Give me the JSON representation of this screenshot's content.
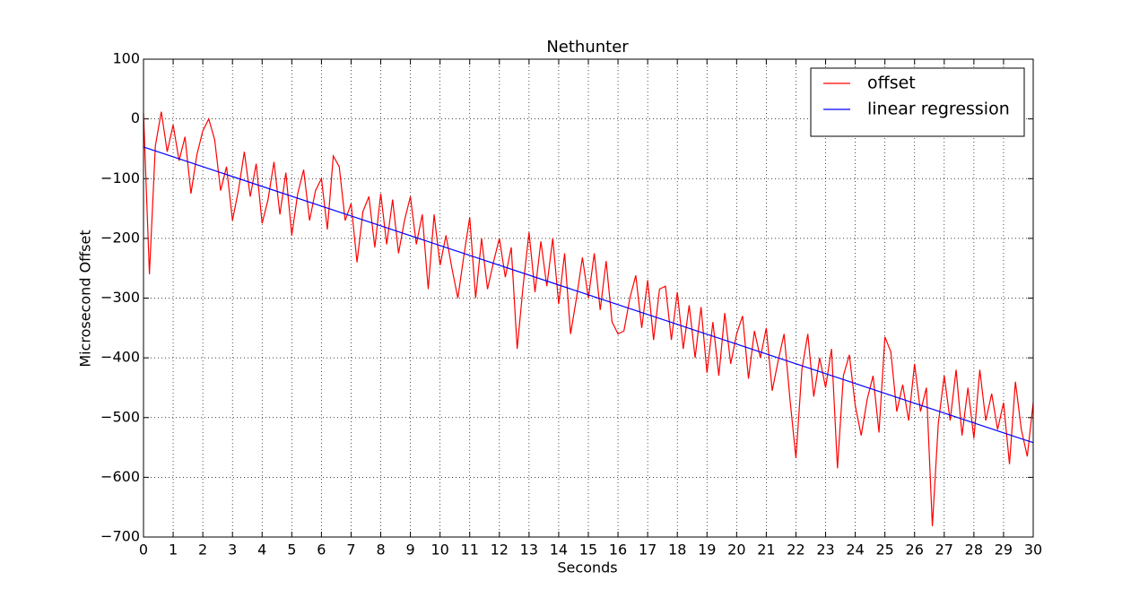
{
  "chart_data": {
    "type": "line",
    "title": "Nethunter",
    "xlabel": "Seconds",
    "ylabel": "Microsecond Offset",
    "xlim": [
      0,
      30
    ],
    "ylim": [
      -700,
      100
    ],
    "xticks": [
      0,
      1,
      2,
      3,
      4,
      5,
      6,
      7,
      8,
      9,
      10,
      11,
      12,
      13,
      14,
      15,
      16,
      17,
      18,
      19,
      20,
      21,
      22,
      23,
      24,
      25,
      26,
      27,
      28,
      29,
      30
    ],
    "yticks": [
      {
        "value": -700,
        "label": "−700"
      },
      {
        "value": -600,
        "label": "−600"
      },
      {
        "value": -500,
        "label": "−500"
      },
      {
        "value": -400,
        "label": "−400"
      },
      {
        "value": -300,
        "label": "−300"
      },
      {
        "value": -200,
        "label": "−200"
      },
      {
        "value": -100,
        "label": "−100"
      },
      0,
      100
    ],
    "grid": true,
    "legend": "upper right",
    "series": [
      {
        "name": "offset",
        "color": "#ff0000",
        "x": [
          0,
          0.2,
          0.4,
          0.6,
          0.8,
          1,
          1.2,
          1.4,
          1.6,
          1.8,
          2,
          2.2,
          2.4,
          2.6,
          2.8,
          3,
          3.2,
          3.4,
          3.6,
          3.8,
          4,
          4.2,
          4.4,
          4.6,
          4.8,
          5,
          5.2,
          5.4,
          5.6,
          5.8,
          6,
          6.2,
          6.4,
          6.6,
          6.8,
          7,
          7.2,
          7.4,
          7.6,
          7.8,
          8,
          8.2,
          8.4,
          8.6,
          8.8,
          9,
          9.2,
          9.4,
          9.6,
          9.8,
          10,
          10.2,
          10.4,
          10.6,
          10.8,
          11,
          11.2,
          11.4,
          11.6,
          11.8,
          12,
          12.2,
          12.4,
          12.6,
          12.8,
          13,
          13.2,
          13.4,
          13.6,
          13.8,
          14,
          14.2,
          14.4,
          14.6,
          14.8,
          15,
          15.2,
          15.4,
          15.6,
          15.8,
          16,
          16.2,
          16.4,
          16.6,
          16.8,
          17,
          17.2,
          17.4,
          17.6,
          17.8,
          18,
          18.2,
          18.4,
          18.6,
          18.8,
          19,
          19.2,
          19.4,
          19.6,
          19.8,
          20,
          20.2,
          20.4,
          20.6,
          20.8,
          21,
          21.2,
          21.4,
          21.6,
          21.8,
          22,
          22.2,
          22.4,
          22.6,
          22.8,
          23,
          23.2,
          23.4,
          23.6,
          23.8,
          24,
          24.2,
          24.4,
          24.6,
          24.8,
          25,
          25.2,
          25.4,
          25.6,
          25.8,
          26,
          26.2,
          26.4,
          26.6,
          26.8,
          27,
          27.2,
          27.4,
          27.6,
          27.8,
          28,
          28.2,
          28.4,
          28.6,
          28.8,
          29,
          29.2,
          29.4,
          29.6,
          29.8,
          30
        ],
        "values": [
          10,
          -260,
          -45,
          12,
          -55,
          -10,
          -70,
          -30,
          -125,
          -60,
          -20,
          0,
          -35,
          -120,
          -80,
          -170,
          -120,
          -55,
          -130,
          -75,
          -175,
          -135,
          -72,
          -160,
          -90,
          -195,
          -125,
          -85,
          -170,
          -120,
          -100,
          -185,
          -62,
          -80,
          -170,
          -142,
          -240,
          -155,
          -130,
          -215,
          -125,
          -210,
          -135,
          -225,
          -170,
          -130,
          -210,
          -160,
          -285,
          -160,
          -245,
          -195,
          -250,
          -300,
          -230,
          -165,
          -300,
          -200,
          -285,
          -240,
          -200,
          -265,
          -215,
          -385,
          -280,
          -190,
          -290,
          -205,
          -280,
          -200,
          -310,
          -225,
          -360,
          -300,
          -232,
          -300,
          -225,
          -320,
          -238,
          -340,
          -360,
          -355,
          -300,
          -262,
          -350,
          -270,
          -370,
          -285,
          -280,
          -370,
          -290,
          -385,
          -312,
          -400,
          -315,
          -425,
          -340,
          -430,
          -325,
          -410,
          -360,
          -330,
          -435,
          -355,
          -400,
          -350,
          -455,
          -405,
          -360,
          -470,
          -568,
          -420,
          -360,
          -465,
          -400,
          -450,
          -385,
          -585,
          -430,
          -395,
          -480,
          -530,
          -470,
          -430,
          -525,
          -365,
          -390,
          -490,
          -445,
          -505,
          -410,
          -490,
          -450,
          -682,
          -510,
          -430,
          -505,
          -420,
          -530,
          -450,
          -535,
          -420,
          -505,
          -460,
          -520,
          -475,
          -578,
          -440,
          -520,
          -565,
          -475
        ]
      },
      {
        "name": "linear regression",
        "color": "#0000ff",
        "x": [
          0,
          30
        ],
        "values": [
          -47,
          -542
        ]
      }
    ]
  }
}
